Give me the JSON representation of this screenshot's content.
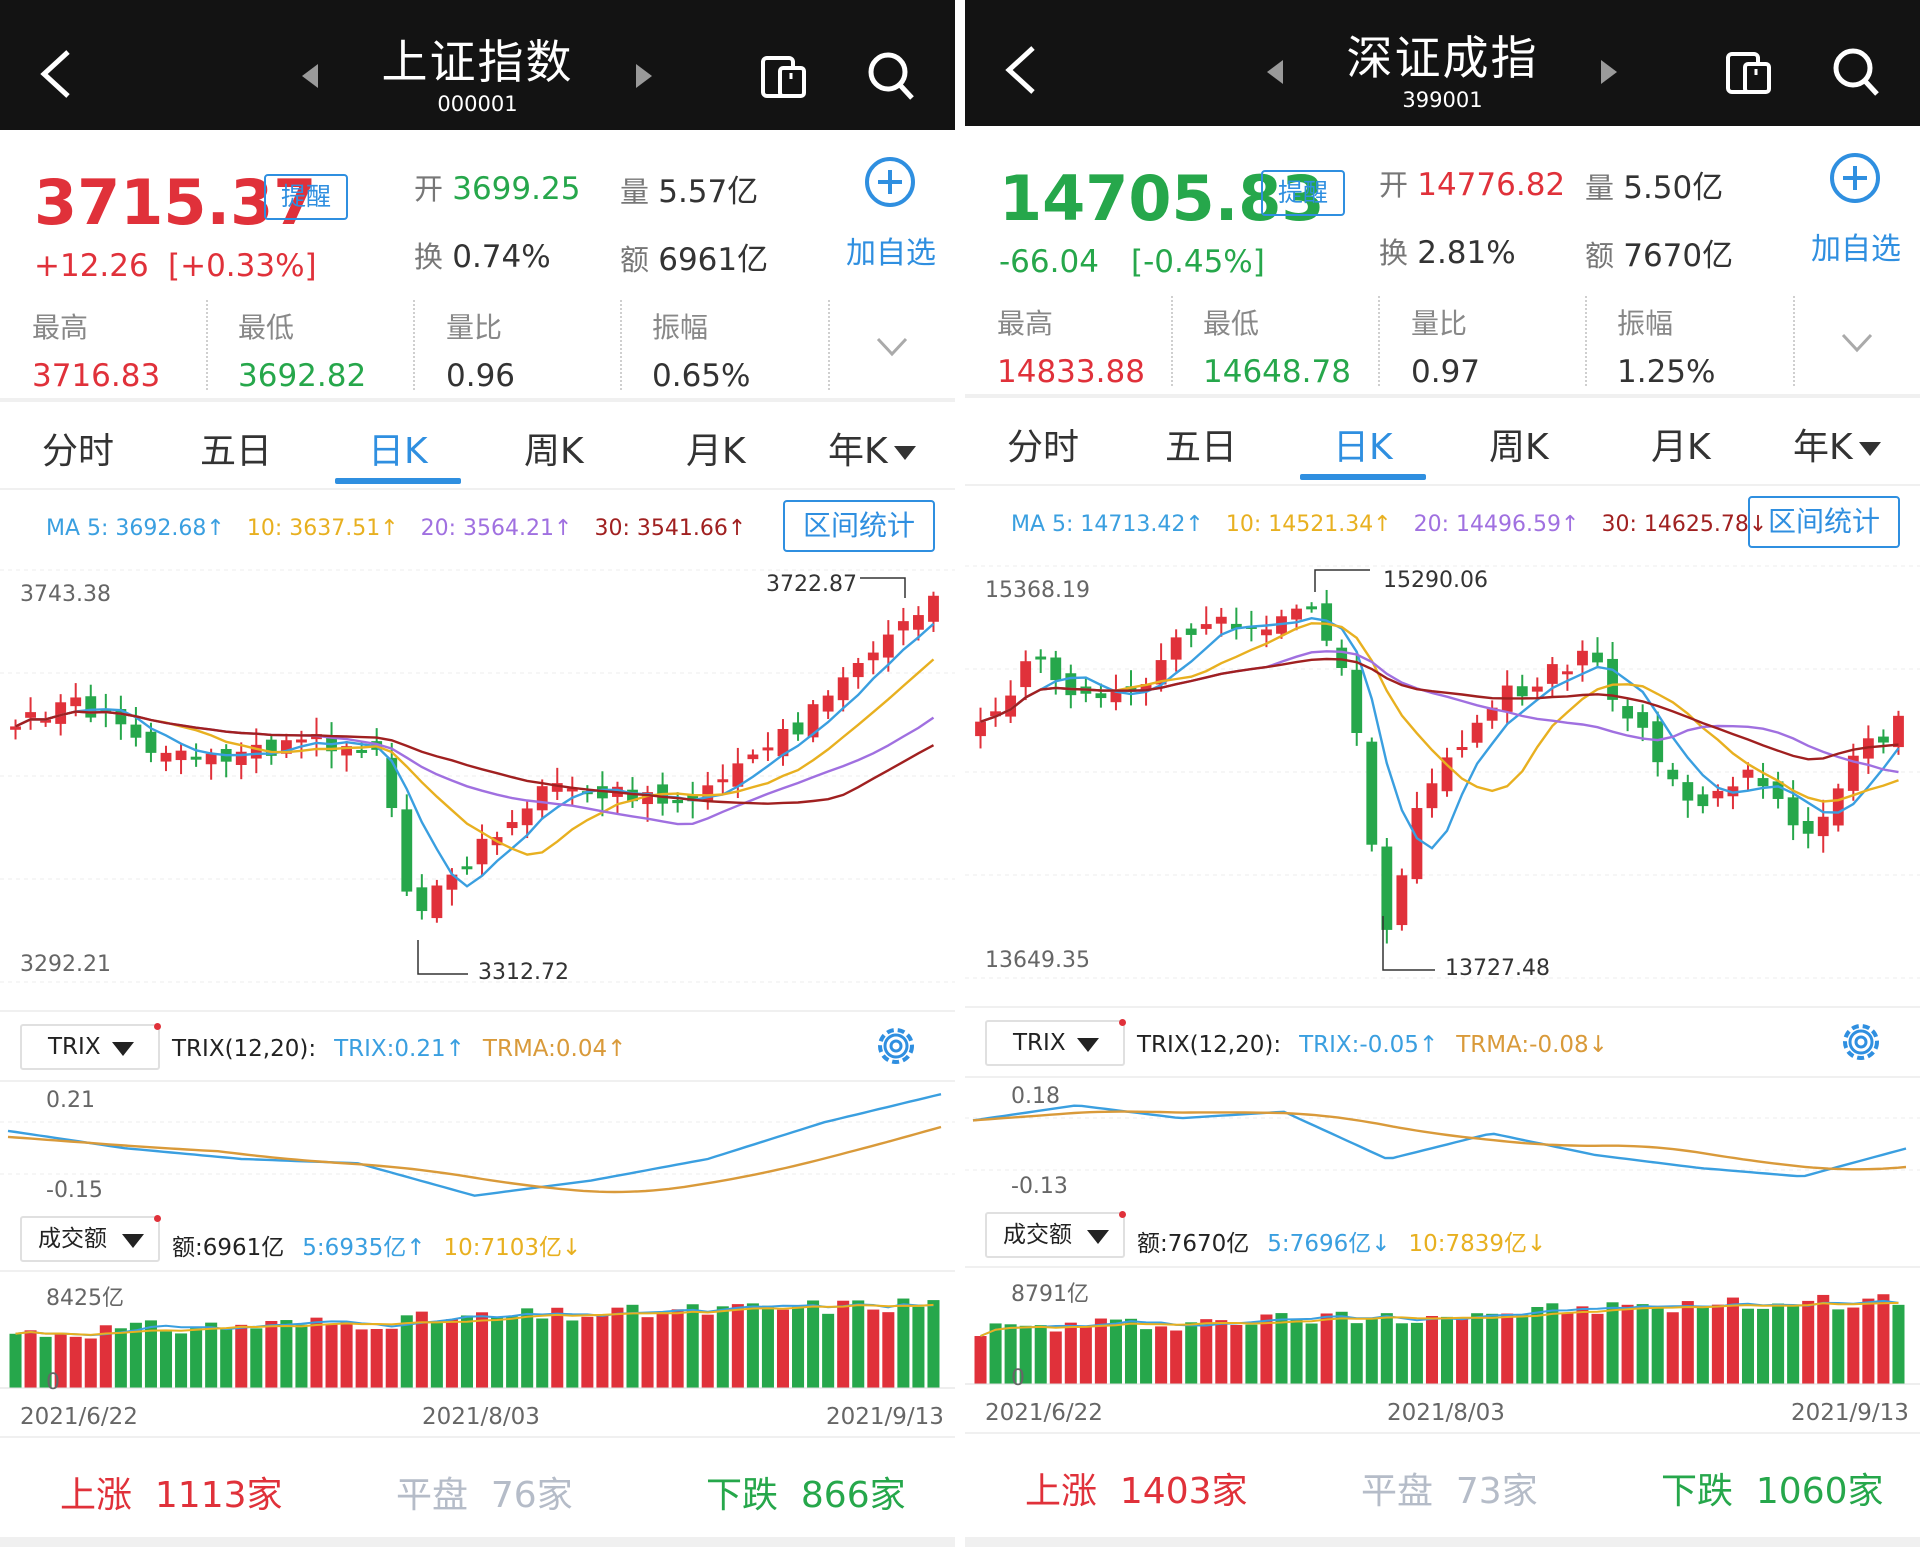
{
  "panels": [
    {
      "title": "上证指数",
      "code": "000001",
      "price": "3715.37",
      "price_color": "#e0313a",
      "remind": "提醒",
      "change": "+12.26",
      "change_pct": "[+0.33%]",
      "open_label": "开",
      "open": "3699.25",
      "open_color": "#26a74b",
      "vol_label": "量",
      "vol": "5.57亿",
      "turn_label": "换",
      "turn": "0.74%",
      "amt_label": "额",
      "amt": "6961亿",
      "add_label": "加自选",
      "high_label": "最高",
      "high": "3716.83",
      "low_label": "最低",
      "low": "3692.82",
      "ratio_label": "量比",
      "ratio": "0.96",
      "amp_label": "振幅",
      "amp": "0.65%",
      "tabs": [
        "分时",
        "五日",
        "日K",
        "周K",
        "月K",
        "年K"
      ],
      "ma": {
        "ma5": "MA 5: 3692.68↑",
        "ma10": "10: 3637.51↑",
        "ma20": "20: 3564.21↑",
        "ma30": "30: 3541.66↑"
      },
      "stats_btn": "区间统计",
      "y_top": "3743.38",
      "y_bottom": "3292.21",
      "peak_label": "3722.87",
      "trough_label": "3312.72",
      "trix_sel": "TRIX",
      "trix_name": "TRIX(12,20):",
      "trix_val": "TRIX:0.21↑",
      "trma_val": "TRMA:0.04↑",
      "trix_top": "0.21",
      "trix_bottom": "-0.15",
      "amt_sel": "成交额",
      "amt_txt": "额:6961亿",
      "amt5": "5:6935亿↑",
      "amt10": "10:7103亿↓",
      "amt_top": "8425亿",
      "amt_zero": "0",
      "dates": [
        "2021/6/22",
        "2021/8/03",
        "2021/9/13"
      ],
      "up_label": "上涨",
      "up": "1113家",
      "flat_label": "平盘",
      "flat": "76家",
      "down_label": "下跌",
      "down": "866家"
    },
    {
      "title": "深证成指",
      "code": "399001",
      "price": "14705.83",
      "price_color": "#26a74b",
      "remind": "提醒",
      "change": "-66.04",
      "change_pct": "[-0.45%]",
      "open_label": "开",
      "open": "14776.82",
      "open_color": "#e0313a",
      "vol_label": "量",
      "vol": "5.50亿",
      "turn_label": "换",
      "turn": "2.81%",
      "amt_label": "额",
      "amt": "7670亿",
      "add_label": "加自选",
      "high_label": "最高",
      "high": "14833.88",
      "low_label": "最低",
      "low": "14648.78",
      "ratio_label": "量比",
      "ratio": "0.97",
      "amp_label": "振幅",
      "amp": "1.25%",
      "tabs": [
        "分时",
        "五日",
        "日K",
        "周K",
        "月K",
        "年K"
      ],
      "ma": {
        "ma5": "MA 5: 14713.42↑",
        "ma10": "10: 14521.34↑",
        "ma20": "20: 14496.59↑",
        "ma30": "30: 14625.78↓"
      },
      "stats_btn": "区间统计",
      "y_top": "15368.19",
      "y_bottom": "13649.35",
      "peak_label": "15290.06",
      "trough_label": "13727.48",
      "trix_sel": "TRIX",
      "trix_name": "TRIX(12,20):",
      "trix_val": "TRIX:-0.05↑",
      "trma_val": "TRMA:-0.08↓",
      "trix_top": "0.18",
      "trix_bottom": "-0.13",
      "amt_sel": "成交额",
      "amt_txt": "额:7670亿",
      "amt5": "5:7696亿↓",
      "amt10": "10:7839亿↓",
      "amt_top": "8791亿",
      "amt_zero": "0",
      "dates": [
        "2021/6/22",
        "2021/8/03",
        "2021/9/13"
      ],
      "up_label": "上涨",
      "up": "1403家",
      "flat_label": "平盘",
      "flat": "73家",
      "down_label": "下跌",
      "down": "1060家"
    }
  ],
  "colors": {
    "up": "#e0313a",
    "down": "#26a74b",
    "accent": "#2f8fe0",
    "ma5": "#3a9fe0",
    "ma10": "#e8b020",
    "ma20": "#a070e0",
    "ma30": "#a02020",
    "trma": "#d99a3a",
    "header": "#131313"
  },
  "icons": [
    "back-arrow-icon",
    "prev-caret-icon",
    "next-caret-icon",
    "device-switch-icon",
    "search-icon",
    "add-circle-icon",
    "chevron-down-icon",
    "gear-icon"
  ]
}
